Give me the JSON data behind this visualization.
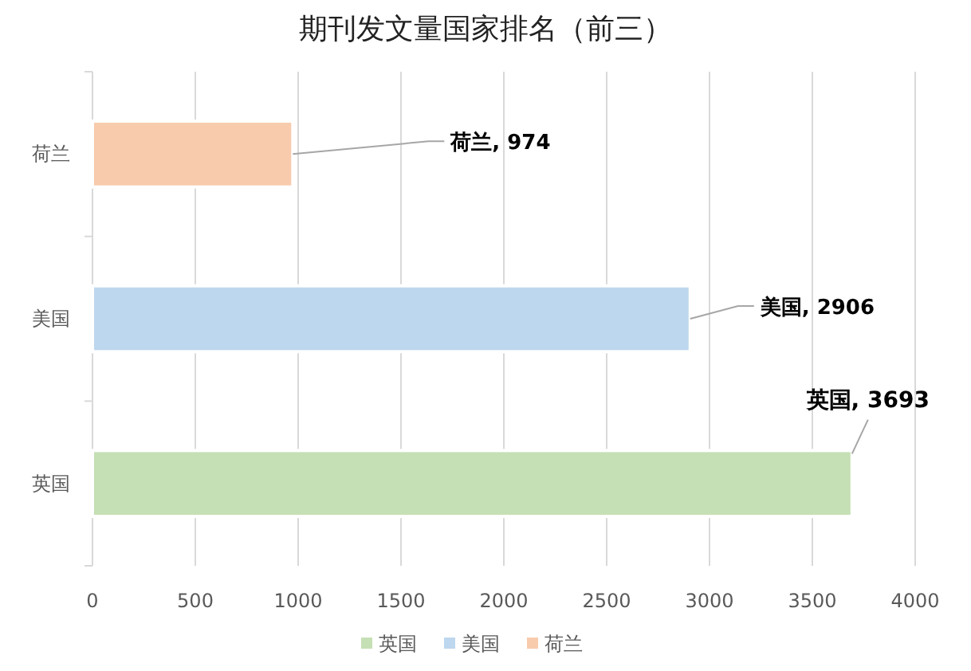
{
  "chart_data": {
    "type": "bar",
    "orientation": "horizontal",
    "title": "期刊发文量国家排名（前三）",
    "categories": [
      "荷兰",
      "美国",
      "英国"
    ],
    "series": [
      {
        "name": "英国",
        "color": "#c5e0b4",
        "values": [
          null,
          null,
          3693
        ],
        "value_labels": [
          null,
          null,
          "英国, 3693"
        ]
      },
      {
        "name": "美国",
        "color": "#bdd7ee",
        "values": [
          null,
          2906,
          null
        ],
        "value_labels": [
          null,
          "美国, 2906",
          null
        ]
      },
      {
        "name": "荷兰",
        "color": "#f8cbad",
        "values": [
          974,
          null,
          null
        ],
        "value_labels": [
          "荷兰, 974",
          null,
          null
        ]
      }
    ],
    "xlim": [
      0,
      4000
    ],
    "xticks": [
      0,
      500,
      1000,
      1500,
      2000,
      2500,
      3000,
      3500,
      4000
    ],
    "grid": "x",
    "legend": "bottom"
  }
}
